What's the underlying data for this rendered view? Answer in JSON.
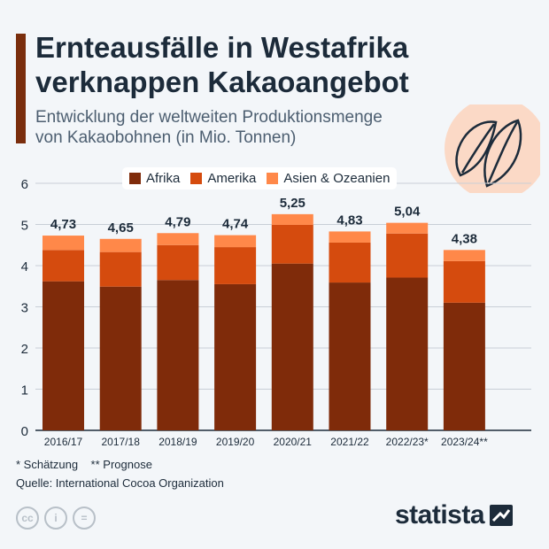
{
  "header": {
    "title": "Ernteausfälle in Westafrika verknappen Kakaoangebot",
    "subtitle_line1": "Entwicklung der weltweiten Produktionsmenge",
    "subtitle_line2": "von Kakaobohnen (in Mio. Tonnen)"
  },
  "chart_data": {
    "type": "bar",
    "stacked": true,
    "categories": [
      "2016/17",
      "2017/18",
      "2018/19",
      "2019/20",
      "2020/21",
      "2021/22",
      "2022/23*",
      "2023/24**"
    ],
    "series": [
      {
        "name": "Afrika",
        "color": "#7f2b0a",
        "values": [
          3.62,
          3.49,
          3.65,
          3.55,
          4.05,
          3.59,
          3.71,
          3.1
        ]
      },
      {
        "name": "Amerika",
        "color": "#d54b0e",
        "values": [
          0.76,
          0.84,
          0.85,
          0.9,
          0.94,
          0.97,
          1.07,
          1.01
        ]
      },
      {
        "name": "Asien & Ozeanien",
        "color": "#ff8849",
        "values": [
          0.35,
          0.32,
          0.29,
          0.29,
          0.26,
          0.27,
          0.26,
          0.27
        ]
      }
    ],
    "totals_labels": [
      "4,73",
      "4,65",
      "4,79",
      "4,74",
      "5,25",
      "4,83",
      "5,04",
      "4,38"
    ],
    "totals": [
      4.73,
      4.65,
      4.79,
      4.74,
      5.25,
      4.83,
      5.04,
      4.38
    ],
    "ylim": [
      0,
      6
    ],
    "yticks": [
      "0",
      "1",
      "2",
      "3",
      "4",
      "5",
      "6"
    ],
    "grid": true,
    "legend": "top"
  },
  "footer": {
    "notes": "* Schätzung    ** Prognose",
    "source": "Quelle: International Cocoa Organization",
    "brand": "statista",
    "cc_icons": [
      "cc-icon",
      "person-icon",
      "equals-icon"
    ]
  }
}
